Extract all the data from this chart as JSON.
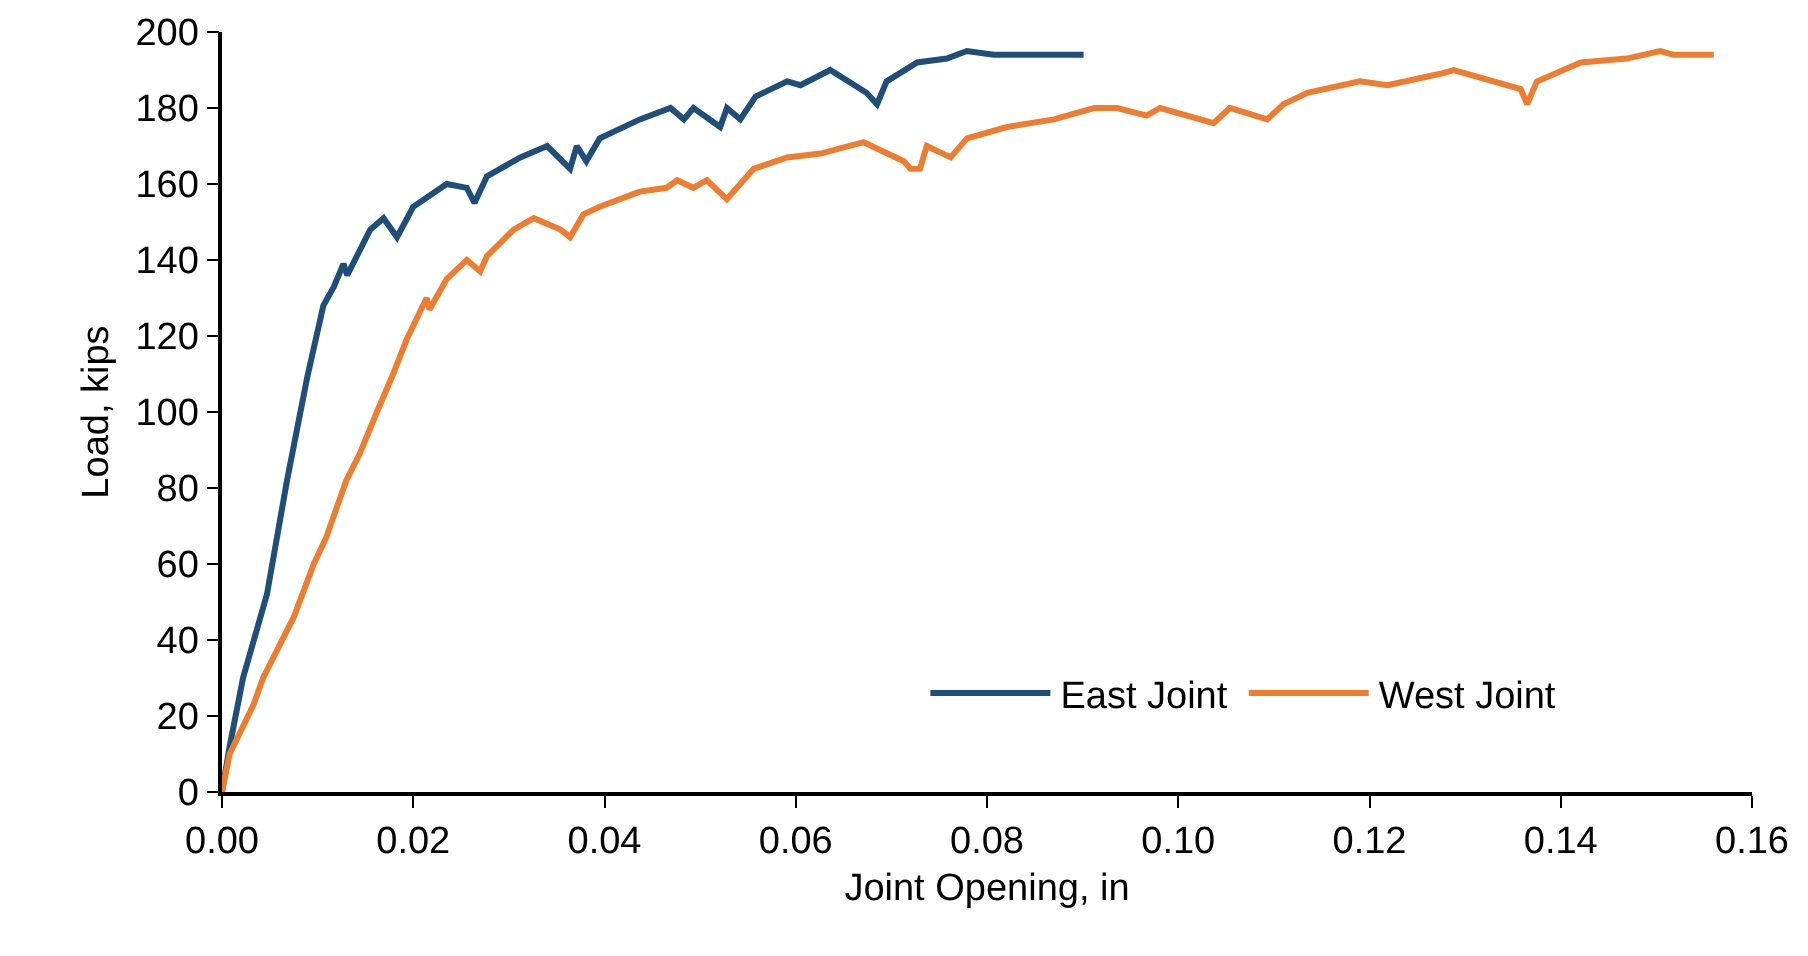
{
  "chart_data": {
    "type": "line",
    "xlabel": "Joint Opening, in",
    "ylabel": "Load, kips",
    "xlim": [
      0,
      0.16
    ],
    "xticks": [
      {
        "value": 0,
        "label": "0.00"
      },
      {
        "value": 0.02,
        "label": "0.02"
      },
      {
        "value": 0.04,
        "label": "0.04"
      },
      {
        "value": 0.06,
        "label": "0.06"
      },
      {
        "value": 0.08,
        "label": "0.08"
      },
      {
        "value": 0.1,
        "label": "0.10"
      },
      {
        "value": 0.12,
        "label": "0.12"
      },
      {
        "value": 0.14,
        "label": "0.14"
      },
      {
        "value": 0.16,
        "label": "0.16"
      }
    ],
    "ylim": [
      0,
      200
    ],
    "yticks": [
      0,
      20,
      40,
      60,
      80,
      100,
      120,
      140,
      160,
      180,
      200
    ],
    "grid": false,
    "legend": "bottom right",
    "marker": "none",
    "line_style": "solid",
    "series": [
      {
        "name": "East Joint",
        "color": "#1f4e79",
        "x": [
          0,
          0.0008,
          0.0022,
          0.0047,
          0.0068,
          0.0089,
          0.0106,
          0.0117,
          0.0127,
          0.0131,
          0.0155,
          0.0169,
          0.0183,
          0.02,
          0.0235,
          0.0256,
          0.0264,
          0.0277,
          0.0312,
          0.034,
          0.0364,
          0.0371,
          0.0381,
          0.0395,
          0.0437,
          0.0469,
          0.0483,
          0.0493,
          0.0521,
          0.0528,
          0.0542,
          0.0558,
          0.0591,
          0.0605,
          0.0636,
          0.0674,
          0.0685,
          0.0695,
          0.0727,
          0.0758,
          0.0779,
          0.0807,
          0.0901
        ],
        "values": [
          0,
          12,
          30,
          52,
          82,
          109,
          128,
          133,
          139,
          136,
          148,
          151,
          146,
          154,
          160,
          159,
          155,
          162,
          167,
          170,
          164,
          170,
          166,
          172,
          177,
          180,
          177,
          180,
          175,
          180,
          177,
          183,
          187,
          186,
          190,
          184,
          181,
          187,
          192,
          193,
          195,
          194,
          194
        ]
      },
      {
        "name": "West Joint",
        "color": "#ed7d31",
        "x": [
          0,
          0.0008,
          0.0033,
          0.0043,
          0.0075,
          0.0096,
          0.0109,
          0.013,
          0.0144,
          0.0162,
          0.0179,
          0.0193,
          0.0214,
          0.0217,
          0.0235,
          0.0256,
          0.027,
          0.0277,
          0.0305,
          0.0326,
          0.0354,
          0.0364,
          0.0378,
          0.0395,
          0.0437,
          0.0465,
          0.0476,
          0.0493,
          0.0507,
          0.0528,
          0.0535,
          0.0556,
          0.0591,
          0.0626,
          0.0671,
          0.0713,
          0.072,
          0.073,
          0.0737,
          0.0762,
          0.0779,
          0.0821,
          0.087,
          0.0912,
          0.0936,
          0.0967,
          0.0981,
          0.1037,
          0.1054,
          0.1093,
          0.111,
          0.1135,
          0.119,
          0.1219,
          0.1274,
          0.1288,
          0.1358,
          0.1365,
          0.1375,
          0.1421,
          0.1469,
          0.1504,
          0.1518,
          0.156
        ],
        "values": [
          0,
          10,
          23,
          30,
          46,
          60,
          67,
          82,
          89,
          100,
          110,
          119,
          130,
          127,
          135,
          140,
          137,
          141,
          148,
          151,
          148,
          146,
          152,
          154,
          158,
          159,
          161,
          159,
          161,
          156,
          158,
          164,
          167,
          168,
          171,
          166,
          164,
          164,
          170,
          167,
          172,
          175,
          177,
          180,
          180,
          178,
          180,
          176,
          180,
          177,
          181,
          184,
          187,
          186,
          189,
          190,
          185,
          181,
          187,
          192,
          193,
          195,
          194,
          194
        ]
      }
    ]
  }
}
